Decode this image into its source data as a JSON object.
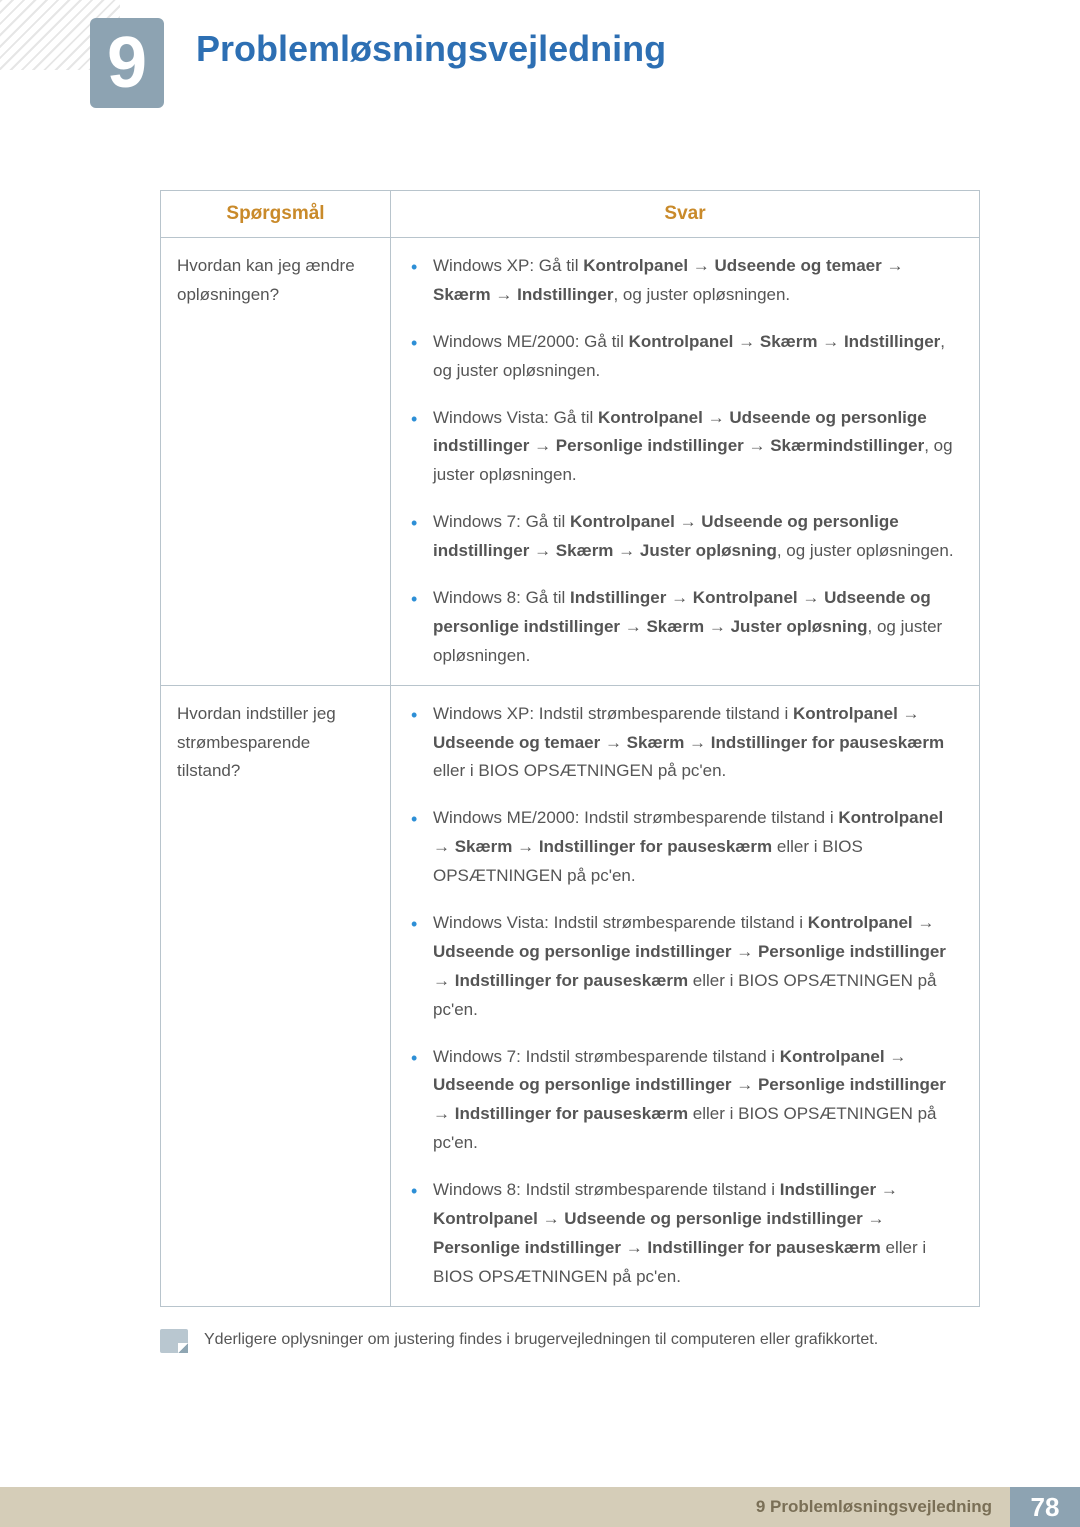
{
  "colors": {
    "badge_bg": "#8da3b2",
    "title_blue": "#2d6fb3",
    "th_orange": "#c98a2a",
    "border": "#b8c4cc",
    "bullet": "#2d8fd6",
    "footer_bar": "#d5cdb8",
    "footer_text": "#7a6f56"
  },
  "chapter_number": "9",
  "chapter_title": "Problemløsningsvejledning",
  "table": {
    "header_q": "Spørgsmål",
    "header_a": "Svar",
    "rows": [
      {
        "question": "Hvordan kan jeg ændre opløsningen?",
        "answers": [
          {
            "plain_pre": "Windows XP: Gå til ",
            "bold_path": "Kontrolpanel → Udseende og temaer → Skærm → Indstillinger",
            "plain_post": ", og juster opløsningen."
          },
          {
            "plain_pre": "Windows ME/2000: Gå til ",
            "bold_path": "Kontrolpanel → Skærm → Indstillinger",
            "plain_post": ", og juster opløsningen."
          },
          {
            "plain_pre": "Windows Vista: Gå til ",
            "bold_path": "Kontrolpanel → Udseende og personlige indstillinger → Personlige indstillinger → Skærmindstillinger",
            "plain_post": ", og juster opløsningen."
          },
          {
            "plain_pre": "Windows 7: Gå til ",
            "bold_path": "Kontrolpanel → Udseende og personlige indstillinger → Skærm → Juster opløsning",
            "plain_post": ", og juster opløsningen."
          },
          {
            "plain_pre": "Windows 8: Gå til ",
            "bold_path": "Indstillinger → Kontrolpanel → Udseende og personlige indstillinger → Skærm → Juster opløsning",
            "plain_post": ", og juster opløsningen."
          }
        ]
      },
      {
        "question": "Hvordan indstiller jeg strømbesparende tilstand?",
        "answers": [
          {
            "plain_pre": "Windows XP: Indstil strømbesparende tilstand i ",
            "bold_path": "Kontrolpanel → Udseende og temaer → Skærm → Indstillinger for pauseskærm",
            "plain_post": " eller i BIOS OPSÆTNINGEN på pc'en."
          },
          {
            "plain_pre": "Windows ME/2000: Indstil strømbesparende tilstand i ",
            "bold_path": "Kontrolpanel → Skærm → Indstillinger for pauseskærm",
            "plain_post": " eller i BIOS OPSÆTNINGEN på pc'en."
          },
          {
            "plain_pre": "Windows Vista: Indstil strømbesparende tilstand i ",
            "bold_path": "Kontrolpanel → Udseende og personlige indstillinger → Personlige indstillinger → Indstillinger for pauseskærm",
            "plain_post": " eller i BIOS OPSÆTNINGEN på pc'en."
          },
          {
            "plain_pre": "Windows 7: Indstil strømbesparende tilstand i ",
            "bold_path": "Kontrolpanel → Udseende og personlige indstillinger → Personlige indstillinger → Indstillinger for pauseskærm",
            "plain_post": " eller i BIOS OPSÆTNINGEN på pc'en."
          },
          {
            "plain_pre": "Windows 8: Indstil strømbesparende tilstand i ",
            "bold_path": "Indstillinger → Kontrolpanel → Udseende og personlige indstillinger → Personlige indstillinger → Indstillinger for pauseskærm",
            "plain_post": " eller i BIOS OPSÆTNINGEN på pc'en."
          }
        ]
      }
    ]
  },
  "note_text": "Yderligere oplysninger om justering findes i brugervejledningen til computeren eller grafikkortet.",
  "footer_title": "9 Problemløsningsvejledning",
  "page_number": "78"
}
